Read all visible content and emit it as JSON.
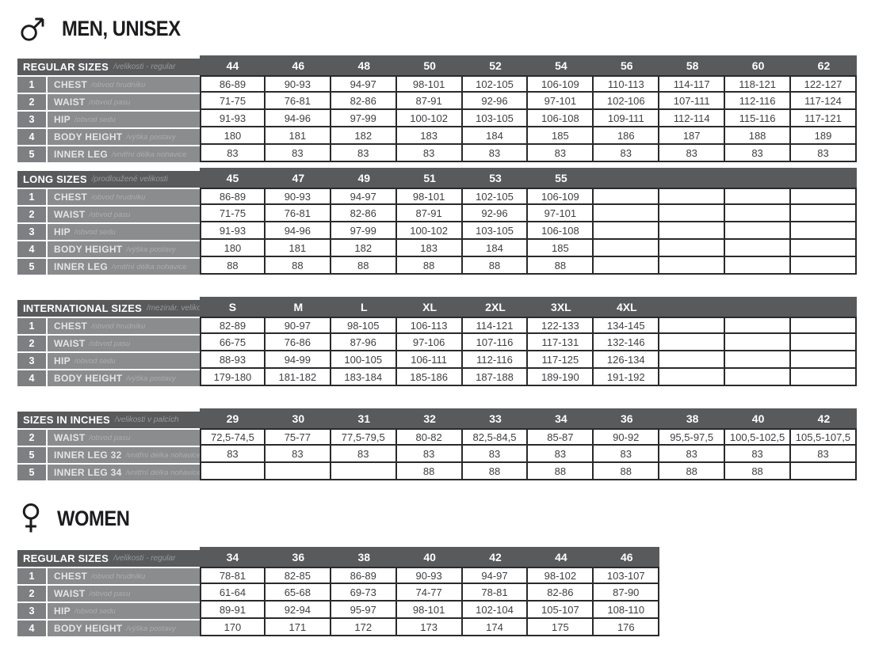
{
  "page": {
    "men_title": "MEN, UNISEX",
    "women_title": "WOMEN"
  },
  "icons": {
    "men": "male-symbol",
    "women": "female-symbol"
  },
  "colors": {
    "header_bg": "#595a5c",
    "row_number_bg": "#7d7f82",
    "label_bg": "#8a8c8e",
    "grid_border": "#2a2a2c",
    "value_text": "#3e3f41"
  },
  "tables": [
    {
      "id": "men-regular-sizes",
      "title": "REGULAR SIZES",
      "subtitle": "/velikosti - regular",
      "sizes": [
        "44",
        "46",
        "48",
        "50",
        "52",
        "54",
        "56",
        "58",
        "60",
        "62"
      ],
      "rows": [
        {
          "num": "1",
          "label": "CHEST",
          "sublabel": "/obvod hrudníku",
          "values": [
            "86-89",
            "90-93",
            "94-97",
            "98-101",
            "102-105",
            "106-109",
            "110-113",
            "114-117",
            "118-121",
            "122-127"
          ]
        },
        {
          "num": "2",
          "label": "WAIST",
          "sublabel": "/obvod pasu",
          "values": [
            "71-75",
            "76-81",
            "82-86",
            "87-91",
            "92-96",
            "97-101",
            "102-106",
            "107-111",
            "112-116",
            "117-124"
          ]
        },
        {
          "num": "3",
          "label": "HIP",
          "sublabel": "/obvod sedu",
          "values": [
            "91-93",
            "94-96",
            "97-99",
            "100-102",
            "103-105",
            "106-108",
            "109-111",
            "112-114",
            "115-116",
            "117-121"
          ]
        },
        {
          "num": "4",
          "label": "BODY HEIGHT",
          "sublabel": "/výška postavy",
          "values": [
            "180",
            "181",
            "182",
            "183",
            "184",
            "185",
            "186",
            "187",
            "188",
            "189"
          ]
        },
        {
          "num": "5",
          "label": "INNER LEG",
          "sublabel": "/vnitřní délka nohavice",
          "values": [
            "83",
            "83",
            "83",
            "83",
            "83",
            "83",
            "83",
            "83",
            "83",
            "83"
          ]
        }
      ]
    },
    {
      "id": "men-long-sizes",
      "title": "LONG SIZES",
      "subtitle": "/prodloužené velikosti",
      "sizes": [
        "45",
        "47",
        "49",
        "51",
        "53",
        "55",
        "",
        "",
        "",
        ""
      ],
      "rows": [
        {
          "num": "1",
          "label": "CHEST",
          "sublabel": "/obvod hrudníku",
          "values": [
            "86-89",
            "90-93",
            "94-97",
            "98-101",
            "102-105",
            "106-109",
            "",
            "",
            "",
            ""
          ]
        },
        {
          "num": "2",
          "label": "WAIST",
          "sublabel": "/obvod pasu",
          "values": [
            "71-75",
            "76-81",
            "82-86",
            "87-91",
            "92-96",
            "97-101",
            "",
            "",
            "",
            ""
          ]
        },
        {
          "num": "3",
          "label": "HIP",
          "sublabel": "/obvod sedu",
          "values": [
            "91-93",
            "94-96",
            "97-99",
            "100-102",
            "103-105",
            "106-108",
            "",
            "",
            "",
            ""
          ]
        },
        {
          "num": "4",
          "label": "BODY HEIGHT",
          "sublabel": "/výška postavy",
          "values": [
            "180",
            "181",
            "182",
            "183",
            "184",
            "185",
            "",
            "",
            "",
            ""
          ]
        },
        {
          "num": "5",
          "label": "INNER LEG",
          "sublabel": "/vnitřní délka nohavice",
          "values": [
            "88",
            "88",
            "88",
            "88",
            "88",
            "88",
            "",
            "",
            "",
            ""
          ]
        }
      ]
    },
    {
      "id": "international-sizes",
      "title": "INTERNATIONAL SIZES",
      "subtitle": "/mezinár. velikosti",
      "sizes": [
        "S",
        "M",
        "L",
        "XL",
        "2XL",
        "3XL",
        "4XL",
        "",
        "",
        ""
      ],
      "rows": [
        {
          "num": "1",
          "label": "CHEST",
          "sublabel": "/obvod hrudníku",
          "values": [
            "82-89",
            "90-97",
            "98-105",
            "106-113",
            "114-121",
            "122-133",
            "134-145",
            "",
            "",
            ""
          ]
        },
        {
          "num": "2",
          "label": "WAIST",
          "sublabel": "/obvod pasu",
          "values": [
            "66-75",
            "76-86",
            "87-96",
            "97-106",
            "107-116",
            "117-131",
            "132-146",
            "",
            "",
            ""
          ]
        },
        {
          "num": "3",
          "label": "HIP",
          "sublabel": "/obvod sedu",
          "values": [
            "88-93",
            "94-99",
            "100-105",
            "106-111",
            "112-116",
            "117-125",
            "126-134",
            "",
            "",
            ""
          ]
        },
        {
          "num": "4",
          "label": "BODY HEIGHT",
          "sublabel": "/výška postavy",
          "values": [
            "179-180",
            "181-182",
            "183-184",
            "185-186",
            "187-188",
            "189-190",
            "191-192",
            "",
            "",
            ""
          ]
        }
      ]
    },
    {
      "id": "sizes-in-inches",
      "title": "SIZES IN INCHES",
      "subtitle": "/velikosti v palcích",
      "sizes": [
        "29",
        "30",
        "31",
        "32",
        "33",
        "34",
        "36",
        "38",
        "40",
        "42"
      ],
      "rows": [
        {
          "num": "2",
          "label": "WAIST",
          "sublabel": "/obvod pasu",
          "values": [
            "72,5-74,5",
            "75-77",
            "77,5-79,5",
            "80-82",
            "82,5-84,5",
            "85-87",
            "90-92",
            "95,5-97,5",
            "100,5-102,5",
            "105,5-107,5"
          ]
        },
        {
          "num": "5",
          "label": "INNER LEG 32",
          "sublabel": "/vnitřní délka nohavice 32",
          "values": [
            "83",
            "83",
            "83",
            "83",
            "83",
            "83",
            "83",
            "83",
            "83",
            "83"
          ]
        },
        {
          "num": "5",
          "label": "INNER LEG 34",
          "sublabel": "/vnitřní délka nohavice 34",
          "values": [
            "",
            "",
            "",
            "88",
            "88",
            "88",
            "88",
            "88",
            "88",
            ""
          ]
        }
      ]
    },
    {
      "id": "women-regular-sizes",
      "title": "REGULAR SIZES",
      "subtitle": "/velikosti - regular",
      "sizes": [
        "34",
        "36",
        "38",
        "40",
        "42",
        "44",
        "46"
      ],
      "rows": [
        {
          "num": "1",
          "label": "CHEST",
          "sublabel": "/obvod hrudníku",
          "values": [
            "78-81",
            "82-85",
            "86-89",
            "90-93",
            "94-97",
            "98-102",
            "103-107"
          ]
        },
        {
          "num": "2",
          "label": "WAIST",
          "sublabel": "/obvod pasu",
          "values": [
            "61-64",
            "65-68",
            "69-73",
            "74-77",
            "78-81",
            "82-86",
            "87-90"
          ]
        },
        {
          "num": "3",
          "label": "HIP",
          "sublabel": "/obvod sedu",
          "values": [
            "89-91",
            "92-94",
            "95-97",
            "98-101",
            "102-104",
            "105-107",
            "108-110"
          ]
        },
        {
          "num": "4",
          "label": "BODY HEIGHT",
          "sublabel": "/výška postavy",
          "values": [
            "170",
            "171",
            "172",
            "173",
            "174",
            "175",
            "176"
          ]
        }
      ]
    }
  ]
}
